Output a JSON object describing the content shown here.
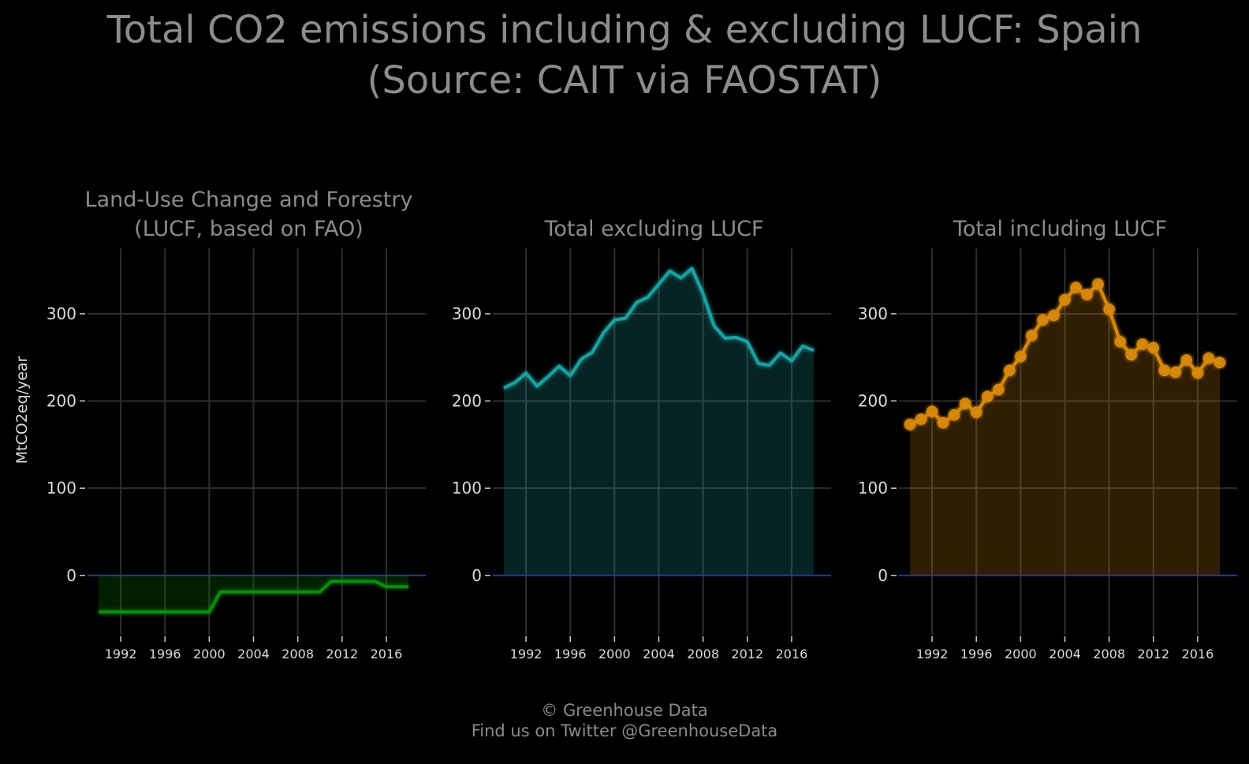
{
  "title": {
    "line1": "Total CO2 emissions including & excluding LUCF: Spain",
    "line2": "(Source: CAIT via FAOSTAT)"
  },
  "footer": {
    "line1": "© Greenhouse Data",
    "line2": "Find us on Twitter @GreenhouseData"
  },
  "colors": {
    "background": "#000000",
    "grid": "#2e2e2e",
    "zero_line": "#2a2aff",
    "lucf": "#0d8c0d",
    "excl": "#1fa0a0",
    "incl": "#d8890a"
  },
  "chart_data": [
    {
      "type": "area",
      "title_lines": [
        "Land-Use Change and Forestry",
        "(LUCF, based on FAO)"
      ],
      "ylabel": "MtCO2eq/year",
      "xlabel": "",
      "ylim": [
        -68,
        375
      ],
      "xlim": [
        1990,
        2018
      ],
      "x_ticks": [
        1992,
        1996,
        2000,
        2004,
        2008,
        2012,
        2016
      ],
      "y_ticks": [
        0,
        100,
        200,
        300
      ],
      "grid": true,
      "markers": false,
      "x": [
        1990,
        1991,
        1992,
        1993,
        1994,
        1995,
        1996,
        1997,
        1998,
        1999,
        2000,
        2001,
        2002,
        2003,
        2004,
        2005,
        2006,
        2007,
        2008,
        2009,
        2010,
        2011,
        2012,
        2013,
        2014,
        2015,
        2016,
        2017,
        2018
      ],
      "values": [
        -42,
        -42,
        -42,
        -42,
        -42,
        -42,
        -42,
        -42,
        -42,
        -42,
        -42,
        -19,
        -19,
        -19,
        -19,
        -19,
        -19,
        -19,
        -19,
        -19,
        -19,
        -7,
        -7,
        -7,
        -7,
        -7,
        -13,
        -13,
        -13
      ]
    },
    {
      "type": "area",
      "title_lines": [
        "Total excluding LUCF"
      ],
      "ylim": [
        -68,
        375
      ],
      "xlim": [
        1990,
        2018
      ],
      "x_ticks": [
        1992,
        1996,
        2000,
        2004,
        2008,
        2012,
        2016
      ],
      "y_ticks": [
        0,
        100,
        200,
        300
      ],
      "grid": true,
      "markers": false,
      "x": [
        1990,
        1991,
        1992,
        1993,
        1994,
        1995,
        1996,
        1997,
        1998,
        1999,
        2000,
        2001,
        2002,
        2003,
        2004,
        2005,
        2006,
        2007,
        2008,
        2009,
        2010,
        2011,
        2012,
        2013,
        2014,
        2015,
        2016,
        2017,
        2018
      ],
      "values": [
        215,
        221,
        232,
        217,
        228,
        240,
        229,
        248,
        256,
        278,
        293,
        295,
        313,
        319,
        334,
        349,
        341,
        352,
        323,
        286,
        272,
        273,
        268,
        243,
        241,
        255,
        246,
        263,
        258
      ]
    },
    {
      "type": "area",
      "title_lines": [
        "Total including LUCF"
      ],
      "ylim": [
        -68,
        375
      ],
      "xlim": [
        1990,
        2018
      ],
      "x_ticks": [
        1992,
        1996,
        2000,
        2004,
        2008,
        2012,
        2016
      ],
      "y_ticks": [
        0,
        100,
        200,
        300
      ],
      "grid": true,
      "markers": true,
      "x": [
        1990,
        1991,
        1992,
        1993,
        1994,
        1995,
        1996,
        1997,
        1998,
        1999,
        2000,
        2001,
        2002,
        2003,
        2004,
        2005,
        2006,
        2007,
        2008,
        2009,
        2010,
        2011,
        2012,
        2013,
        2014,
        2015,
        2016,
        2017,
        2018
      ],
      "values": [
        173,
        179,
        188,
        175,
        184,
        197,
        187,
        205,
        213,
        235,
        251,
        275,
        293,
        298,
        316,
        330,
        322,
        334,
        305,
        268,
        253,
        265,
        261,
        235,
        233,
        247,
        232,
        249,
        244
      ]
    }
  ]
}
